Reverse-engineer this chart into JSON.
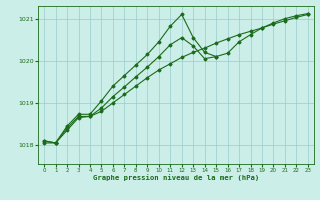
{
  "title": "Graphe pression niveau de la mer (hPa)",
  "bg_color": "#cceee8",
  "line_color": "#1a6b1a",
  "grid_color": "#99cccc",
  "xlim": [
    -0.5,
    23.5
  ],
  "ylim": [
    1017.55,
    1021.3
  ],
  "yticks": [
    1018,
    1019,
    1020,
    1021
  ],
  "xticks": [
    0,
    1,
    2,
    3,
    4,
    5,
    6,
    7,
    8,
    9,
    10,
    11,
    12,
    13,
    14,
    15,
    16,
    17,
    18,
    19,
    20,
    21,
    22,
    23
  ],
  "series1_x": [
    0,
    1,
    2,
    3,
    4,
    5,
    6,
    7,
    8,
    9,
    10,
    11,
    12,
    13,
    14,
    15,
    16,
    17,
    18,
    19,
    20,
    21,
    22,
    23
  ],
  "series1_y": [
    1018.05,
    1018.05,
    1018.35,
    1018.65,
    1018.68,
    1018.8,
    1019.0,
    1019.2,
    1019.4,
    1019.6,
    1019.78,
    1019.93,
    1020.08,
    1020.2,
    1020.3,
    1020.42,
    1020.52,
    1020.62,
    1020.7,
    1020.78,
    1020.87,
    1020.95,
    1021.03,
    1021.1
  ],
  "series2_x": [
    0,
    1,
    2,
    3,
    4,
    5,
    6,
    7,
    8,
    9,
    10,
    11,
    12,
    13,
    14,
    15,
    16,
    17,
    18,
    19,
    20,
    21,
    22,
    23
  ],
  "series2_y": [
    1018.1,
    1018.05,
    1018.4,
    1018.68,
    1018.68,
    1018.88,
    1019.15,
    1019.38,
    1019.62,
    1019.85,
    1020.1,
    1020.38,
    1020.55,
    1020.35,
    1020.05,
    1020.1,
    1020.18,
    1020.45,
    1020.62,
    1020.78,
    1020.9,
    1021.0,
    1021.07,
    1021.12
  ],
  "series3_x": [
    0,
    1,
    2,
    3,
    4,
    5,
    6,
    7,
    8,
    9,
    10,
    11,
    12,
    13,
    14,
    15
  ],
  "series3_y": [
    1018.1,
    1018.05,
    1018.45,
    1018.73,
    1018.73,
    1019.05,
    1019.4,
    1019.65,
    1019.9,
    1020.15,
    1020.45,
    1020.82,
    1021.1,
    1020.55,
    1020.2,
    1020.1
  ]
}
